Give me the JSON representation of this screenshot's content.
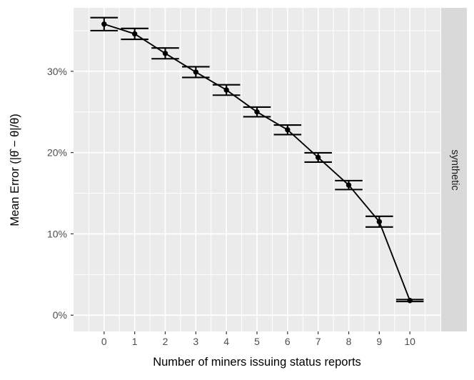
{
  "chart_data": {
    "type": "line",
    "title": "",
    "xlabel": "Number of miners issuing status reports",
    "ylabel": "Mean Error (|θ̂ − θ|/θ)",
    "facet_label": "synthetic",
    "x": [
      0,
      1,
      2,
      3,
      4,
      5,
      6,
      7,
      8,
      9,
      10
    ],
    "y_percent": [
      35.8,
      34.6,
      32.2,
      29.9,
      27.7,
      25.0,
      22.8,
      19.4,
      16.0,
      11.5,
      1.8
    ],
    "y_err_percent": [
      0.8,
      0.67,
      0.66,
      0.66,
      0.64,
      0.59,
      0.59,
      0.57,
      0.55,
      0.66,
      0.12
    ],
    "errorbar_halfwidth_x": 0.45,
    "x_tick_values": [
      0,
      1,
      2,
      3,
      4,
      5,
      6,
      7,
      8,
      9,
      10
    ],
    "x_tick_labels": [
      "0",
      "1",
      "2",
      "3",
      "4",
      "5",
      "6",
      "7",
      "8",
      "9",
      "10"
    ],
    "x_minor_values": [
      -0.5,
      0.5,
      1.5,
      2.5,
      3.5,
      4.5,
      5.5,
      6.5,
      7.5,
      8.5,
      9.5,
      10.5
    ],
    "y_tick_values": [
      0,
      10,
      20,
      30
    ],
    "y_tick_labels": [
      "0%",
      "10%",
      "20%",
      "30%"
    ],
    "y_minor_values": [
      5,
      15,
      25,
      35
    ],
    "xlim": [
      -1.0,
      11.0
    ],
    "ylim": [
      -2.0,
      37.8
    ],
    "grid": true,
    "legend_position": "none",
    "colors": {
      "background": "#FFFFFF",
      "panel_bg": "#EBEBEB",
      "grid": "#FFFFFF",
      "strip_bg": "#D9D9D9",
      "strip_text": "#1A1A1A",
      "axis_text": "#4D4D4D",
      "axis_ticks": "#333333",
      "axis_title": "#000000",
      "series": "#000000"
    }
  }
}
